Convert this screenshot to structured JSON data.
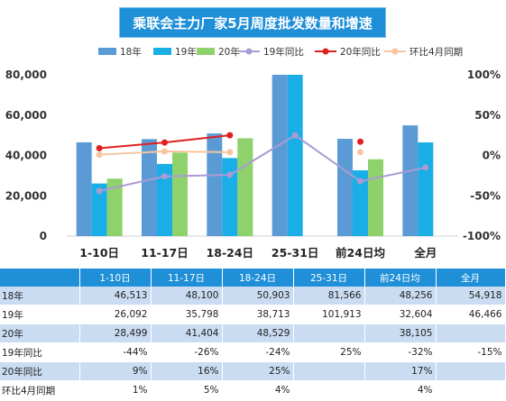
{
  "chart_data": {
    "type": "bar",
    "title": "乘联会主力厂家5月周度批发数量和增速",
    "categories": [
      "1-10日",
      "11-17日",
      "18-24日",
      "25-31日",
      "前24日均",
      "全月"
    ],
    "ylim": [
      0,
      80000
    ],
    "yticks": [
      "0",
      "20,000",
      "40,000",
      "60,000",
      "80,000"
    ],
    "y2lim": [
      -100,
      100
    ],
    "y2ticks": [
      "-100%",
      "-50%",
      "0%",
      "50%",
      "100%"
    ],
    "legend_position": "top",
    "bar_series": [
      {
        "name": "18年",
        "color": "#5b9bd5",
        "values": [
          46513,
          48100,
          50903,
          81566,
          48256,
          54918
        ]
      },
      {
        "name": "19年",
        "color": "#1aaee6",
        "values": [
          26092,
          35798,
          38713,
          101913,
          32604,
          46466
        ]
      },
      {
        "name": "20年",
        "color": "#8fd16a",
        "values": [
          28499,
          41404,
          48529,
          null,
          38105,
          null
        ]
      }
    ],
    "line_series": [
      {
        "name": "19年同比",
        "color": "#a99bd4",
        "values": [
          -44,
          -26,
          -24,
          25,
          -32,
          -15
        ]
      },
      {
        "name": "20年同比",
        "color": "#e02020",
        "values": [
          9,
          16,
          25,
          null,
          17,
          null
        ]
      },
      {
        "name": "环比4月同期",
        "color": "#f7c59f",
        "values": [
          1,
          5,
          4,
          null,
          4,
          null
        ]
      }
    ]
  },
  "table": {
    "header": [
      "",
      "1-10日",
      "11-17日",
      "18-24日",
      "25-31日",
      "前24日均",
      "全月"
    ],
    "rows": [
      [
        "18年",
        "46,513",
        "48,100",
        "50,903",
        "81,566",
        "48,256",
        "54,918"
      ],
      [
        "19年",
        "26,092",
        "35,798",
        "38,713",
        "101,913",
        "32,604",
        "46,466"
      ],
      [
        "20年",
        "28,499",
        "41,404",
        "48,529",
        "",
        "38,105",
        ""
      ],
      [
        "19年同比",
        "-44%",
        "-26%",
        "-24%",
        "25%",
        "-32%",
        "-15%"
      ],
      [
        "20年同比",
        "9%",
        "16%",
        "25%",
        "",
        "17%",
        ""
      ],
      [
        "环比4月同期",
        "1%",
        "5%",
        "4%",
        "",
        "4%",
        ""
      ]
    ]
  }
}
